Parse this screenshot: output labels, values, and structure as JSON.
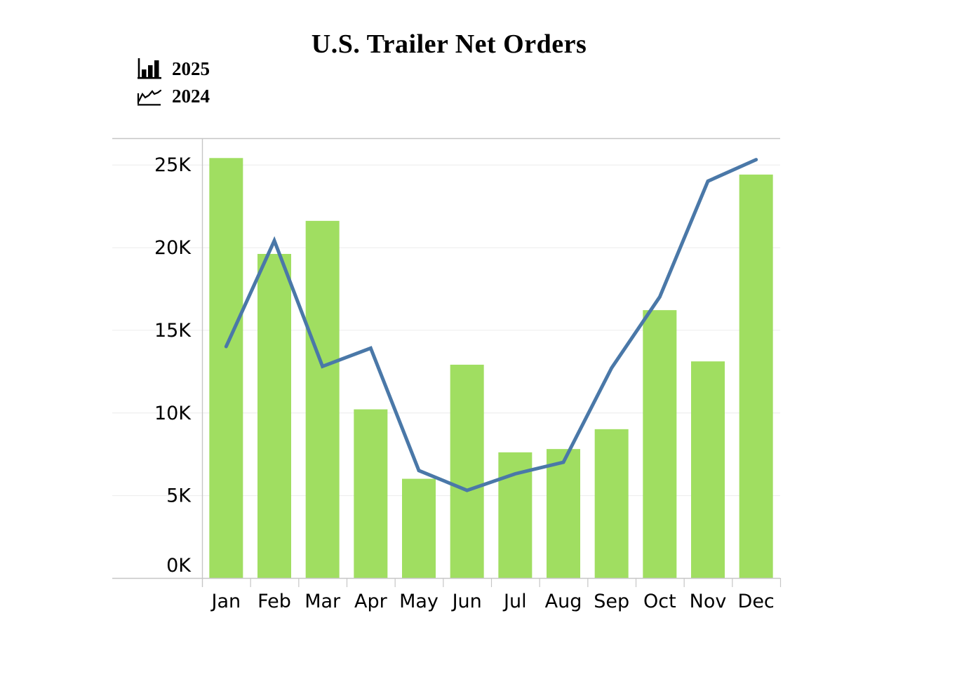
{
  "title": "U.S. Trailer Net Orders",
  "legend": [
    {
      "label": "2025",
      "icon": "bar-series-icon"
    },
    {
      "label": "2024",
      "icon": "line-series-icon"
    }
  ],
  "chart_data": {
    "type": "bar+line combo",
    "title": "U.S. Trailer Net Orders",
    "categories": [
      "Jan",
      "Feb",
      "Mar",
      "Apr",
      "May",
      "Jun",
      "Jul",
      "Aug",
      "Sep",
      "Oct",
      "Nov",
      "Dec"
    ],
    "series": [
      {
        "name": "2025",
        "type": "bar",
        "color": "#A0DE61",
        "values": [
          25400,
          19600,
          21600,
          10200,
          6000,
          12900,
          7600,
          7800,
          9000,
          16200,
          13100,
          24400
        ]
      },
      {
        "name": "2024",
        "type": "line",
        "color": "#4A78A8",
        "values": [
          14000,
          20400,
          12800,
          13900,
          6500,
          5300,
          6300,
          7000,
          12700,
          17000,
          24000,
          25300
        ]
      }
    ],
    "xlabel": "",
    "ylabel": "",
    "y_ticks": {
      "values": [
        0,
        5000,
        10000,
        15000,
        20000,
        25000
      ],
      "labels": [
        "0K",
        "5K",
        "10K",
        "15K",
        "20K",
        "25K"
      ]
    },
    "ylim": [
      0,
      26600
    ],
    "grid": "horizontal",
    "legend_position": "top-left",
    "style": {
      "grid_color": "#ECECEC",
      "axis_color": "#C6C6C6",
      "text_color": "#000000",
      "background": "#FFFFFF"
    }
  }
}
